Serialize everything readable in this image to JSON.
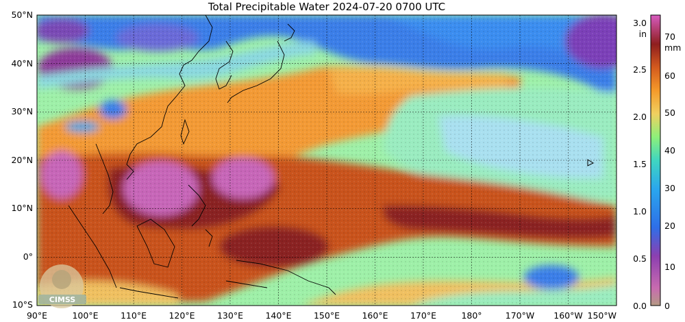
{
  "title": "Total Precipitable Water  2024-07-20 0700 UTC",
  "lat_labels": [
    "50°N",
    "40°N",
    "30°N",
    "20°N",
    "10°N",
    "0°",
    "10°S"
  ],
  "lon_labels": [
    "90°E",
    "100°E",
    "110°E",
    "120°E",
    "130°E",
    "140°E",
    "150°E",
    "160°E",
    "170°E",
    "180°",
    "170°W",
    "160°W",
    "150°W"
  ],
  "colorbar": {
    "inch_unit": "in",
    "mm_unit": "mm",
    "inch_ticks": [
      "3.0",
      "2.5",
      "2.0",
      "1.5",
      "1.0",
      "0.5",
      "0.0"
    ],
    "mm_ticks": [
      "70",
      "60",
      "50",
      "40",
      "30",
      "20",
      "10",
      "0"
    ],
    "colors": [
      "#b59a84",
      "#c86bb0",
      "#8c3fb0",
      "#2e6fe8",
      "#2aa6ee",
      "#40d6c0",
      "#8df07a",
      "#f0d060",
      "#f59a2a",
      "#d45a1e",
      "#8e1e1e",
      "#d75cc0"
    ]
  },
  "logo": {
    "text": "CIMSS"
  }
}
